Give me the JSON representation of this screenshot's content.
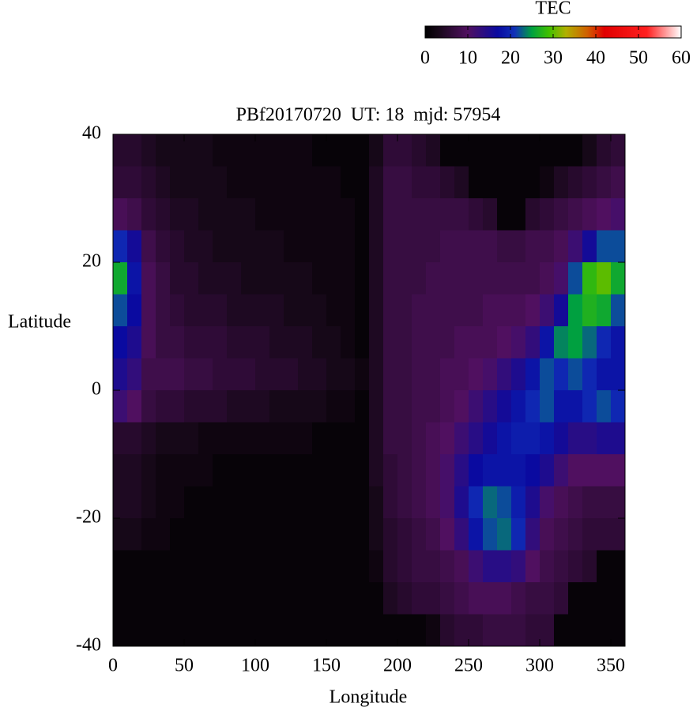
{
  "chart_data": {
    "type": "heatmap",
    "title": "PBf20170720  UT: 18  mjd: 57954",
    "x_label": "Longitude",
    "y_label": "Latitude",
    "xlim": [
      0,
      360
    ],
    "xticks": [
      0,
      50,
      100,
      150,
      200,
      250,
      300,
      350
    ],
    "ylim": [
      -40,
      40
    ],
    "yticks": [
      -40,
      -20,
      0,
      20,
      40
    ],
    "x": [
      5,
      15,
      25,
      35,
      45,
      55,
      65,
      75,
      85,
      95,
      105,
      115,
      125,
      135,
      145,
      155,
      165,
      175,
      185,
      195,
      205,
      215,
      225,
      235,
      245,
      255,
      265,
      275,
      285,
      295,
      305,
      315,
      325,
      335,
      345,
      355
    ],
    "y": [
      37.5,
      32.5,
      27.5,
      22.5,
      17.5,
      12.5,
      7.5,
      2.5,
      -2.5,
      -7.5,
      -12.5,
      -17.5,
      -22.5,
      -27.5,
      -32.5,
      -37.5
    ],
    "z": [
      [
        5,
        5,
        4,
        3,
        3,
        3,
        3,
        2,
        2,
        2,
        2,
        2,
        2,
        2,
        1,
        1,
        1,
        1,
        3,
        6,
        6,
        5,
        4,
        1,
        1,
        1,
        1,
        1,
        1,
        1,
        1,
        1,
        1,
        3,
        5,
        6
      ],
      [
        6,
        6,
        5,
        4,
        3,
        3,
        3,
        3,
        2,
        2,
        2,
        2,
        2,
        2,
        2,
        2,
        1,
        1,
        4,
        7,
        7,
        6,
        6,
        5,
        4,
        1,
        1,
        1,
        1,
        1,
        2,
        4,
        5,
        6,
        7,
        8
      ],
      [
        9,
        8,
        6,
        5,
        4,
        4,
        3,
        3,
        3,
        3,
        2,
        2,
        2,
        2,
        2,
        2,
        2,
        1,
        4,
        7,
        7,
        7,
        7,
        7,
        7,
        6,
        5,
        1,
        1,
        5,
        6,
        7,
        8,
        9,
        10,
        11
      ],
      [
        20,
        16,
        8,
        6,
        5,
        4,
        4,
        3,
        3,
        3,
        3,
        3,
        2,
        2,
        2,
        2,
        2,
        1,
        4,
        7,
        7,
        7,
        7,
        8,
        8,
        8,
        8,
        7,
        7,
        8,
        8,
        9,
        12,
        16,
        22,
        22
      ],
      [
        26,
        18,
        9,
        7,
        5,
        5,
        4,
        4,
        4,
        3,
        3,
        3,
        3,
        3,
        2,
        2,
        2,
        1,
        4,
        7,
        7,
        7,
        8,
        8,
        8,
        8,
        8,
        8,
        8,
        8,
        9,
        11,
        22,
        28,
        30,
        26
      ],
      [
        22,
        17,
        9,
        7,
        6,
        5,
        5,
        5,
        4,
        4,
        4,
        4,
        3,
        3,
        3,
        2,
        2,
        1,
        4,
        7,
        7,
        8,
        8,
        8,
        8,
        8,
        9,
        9,
        9,
        10,
        12,
        16,
        25,
        27,
        26,
        22
      ],
      [
        17,
        15,
        9,
        7,
        7,
        6,
        6,
        6,
        5,
        5,
        5,
        4,
        4,
        4,
        3,
        3,
        2,
        1,
        4,
        7,
        7,
        8,
        8,
        8,
        9,
        9,
        9,
        10,
        11,
        13,
        18,
        24,
        25,
        23,
        20,
        18
      ],
      [
        15,
        13,
        8,
        8,
        8,
        7,
        7,
        6,
        6,
        6,
        5,
        5,
        5,
        4,
        4,
        3,
        3,
        2,
        4,
        7,
        7,
        8,
        8,
        9,
        9,
        10,
        11,
        13,
        15,
        18,
        22,
        20,
        22,
        20,
        18,
        18
      ],
      [
        12,
        10,
        7,
        6,
        6,
        5,
        5,
        5,
        4,
        4,
        4,
        3,
        3,
        3,
        3,
        2,
        2,
        1,
        4,
        7,
        7,
        8,
        8,
        9,
        10,
        12,
        14,
        16,
        18,
        20,
        22,
        18,
        18,
        20,
        22,
        20
      ],
      [
        5,
        5,
        4,
        3,
        3,
        3,
        2,
        2,
        2,
        2,
        2,
        2,
        2,
        2,
        1,
        1,
        1,
        1,
        4,
        7,
        7,
        8,
        9,
        10,
        12,
        14,
        16,
        18,
        19,
        19,
        18,
        16,
        14,
        14,
        15,
        15
      ],
      [
        4,
        4,
        3,
        2,
        2,
        2,
        2,
        1,
        1,
        1,
        1,
        1,
        1,
        1,
        1,
        1,
        1,
        1,
        4,
        6,
        7,
        8,
        9,
        11,
        14,
        17,
        18,
        18,
        18,
        17,
        15,
        12,
        10,
        10,
        10,
        10
      ],
      [
        4,
        4,
        3,
        2,
        2,
        1,
        1,
        1,
        1,
        1,
        1,
        1,
        1,
        1,
        1,
        1,
        1,
        1,
        3,
        6,
        7,
        8,
        9,
        11,
        15,
        20,
        23,
        22,
        19,
        15,
        11,
        9,
        8,
        7,
        7,
        7
      ],
      [
        3,
        3,
        2,
        2,
        1,
        1,
        1,
        1,
        1,
        1,
        1,
        1,
        1,
        1,
        1,
        1,
        1,
        1,
        3,
        5,
        6,
        7,
        8,
        10,
        13,
        18,
        22,
        23,
        20,
        13,
        9,
        8,
        7,
        6,
        6,
        6
      ],
      [
        1,
        1,
        1,
        1,
        1,
        1,
        1,
        1,
        1,
        1,
        1,
        1,
        1,
        1,
        1,
        1,
        1,
        1,
        2,
        5,
        6,
        7,
        7,
        8,
        9,
        12,
        14,
        14,
        13,
        10,
        8,
        7,
        6,
        5,
        1,
        1
      ],
      [
        1,
        1,
        1,
        1,
        1,
        1,
        1,
        1,
        1,
        1,
        1,
        1,
        1,
        1,
        1,
        1,
        1,
        1,
        1,
        4,
        5,
        6,
        6,
        7,
        8,
        9,
        9,
        9,
        8,
        7,
        7,
        6,
        1,
        1,
        1,
        1
      ],
      [
        1,
        1,
        1,
        1,
        1,
        1,
        1,
        1,
        1,
        1,
        1,
        1,
        1,
        1,
        1,
        1,
        1,
        1,
        1,
        1,
        1,
        1,
        2,
        5,
        6,
        6,
        7,
        7,
        7,
        6,
        6,
        1,
        1,
        1,
        1,
        1
      ]
    ],
    "colorbar": {
      "label": "TEC",
      "lim": [
        0,
        60
      ],
      "ticks": [
        0,
        10,
        20,
        30,
        40,
        50,
        60
      ],
      "colormap": [
        {
          "value": 0,
          "color": "#000000"
        },
        {
          "value": 3,
          "color": "#160818"
        },
        {
          "value": 10,
          "color": "#501060"
        },
        {
          "value": 17,
          "color": "#0a0aa0"
        },
        {
          "value": 21,
          "color": "#1030b8"
        },
        {
          "value": 25,
          "color": "#00a040"
        },
        {
          "value": 29,
          "color": "#40c000"
        },
        {
          "value": 33,
          "color": "#b0b000"
        },
        {
          "value": 38,
          "color": "#d06000"
        },
        {
          "value": 42,
          "color": "#e00000"
        },
        {
          "value": 52,
          "color": "#ff2020"
        },
        {
          "value": 60,
          "color": "#ffffff"
        }
      ]
    }
  }
}
